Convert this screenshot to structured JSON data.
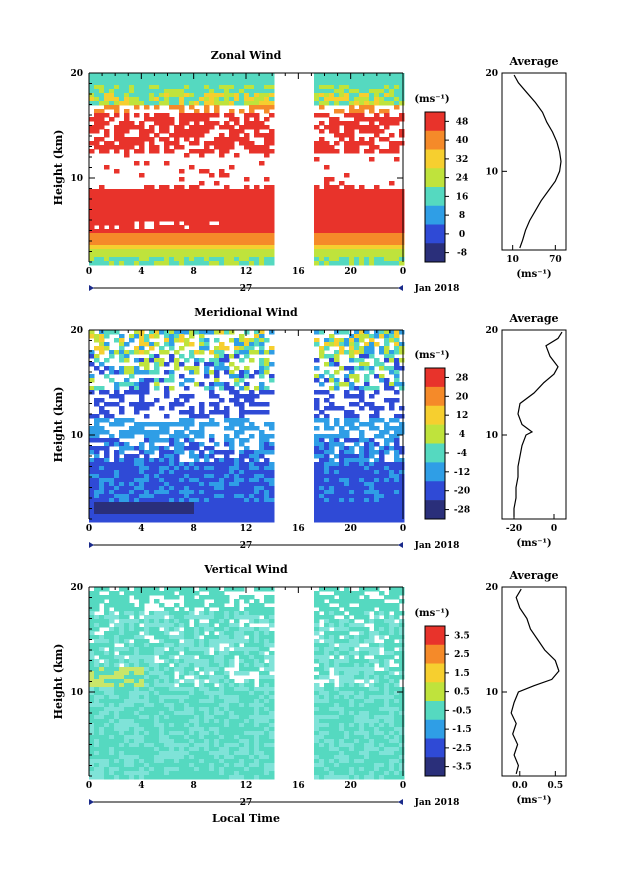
{
  "chart_data": [
    {
      "type": "heatmap",
      "title": "Zonal Wind",
      "xlabel": "",
      "ylabel": "Height (km)",
      "x_ticks": [
        "0",
        "4",
        "8",
        "12",
        "16",
        "20",
        "0"
      ],
      "y_ticks": [
        "20",
        "10"
      ],
      "date_label": "27",
      "month_label": "Jan 2018",
      "colorbar": {
        "unit": "(ms⁻¹)",
        "ticks": [
          "48",
          "40",
          "32",
          "24",
          "16",
          "8",
          "0",
          "-8"
        ]
      },
      "profile": {
        "title": "Average",
        "x_ticks": [
          "10",
          "70"
        ],
        "y_ticks": [
          "20",
          "10"
        ],
        "unit": "(ms⁻¹)",
        "xlim": [
          -5,
          85
        ],
        "ylim": [
          2,
          20
        ],
        "points": [
          [
            20,
            2.2
          ],
          [
            24,
            3
          ],
          [
            28,
            4
          ],
          [
            34,
            5
          ],
          [
            42,
            6
          ],
          [
            50,
            7
          ],
          [
            60,
            8
          ],
          [
            70,
            9
          ],
          [
            76,
            10
          ],
          [
            78,
            11
          ],
          [
            76,
            12
          ],
          [
            72,
            13
          ],
          [
            66,
            14
          ],
          [
            58,
            15
          ],
          [
            52,
            16
          ],
          [
            42,
            17
          ],
          [
            30,
            18
          ],
          [
            18,
            19
          ],
          [
            12,
            19.8
          ]
        ]
      }
    },
    {
      "type": "heatmap",
      "title": "Meridional Wind",
      "xlabel": "",
      "ylabel": "Height (km)",
      "x_ticks": [
        "0",
        "4",
        "8",
        "12",
        "16",
        "20",
        "0"
      ],
      "y_ticks": [
        "20",
        "10"
      ],
      "date_label": "27",
      "month_label": "Jan 2018",
      "colorbar": {
        "unit": "(ms⁻¹)",
        "ticks": [
          "28",
          "20",
          "12",
          "4",
          "-4",
          "-12",
          "-20",
          "-28"
        ]
      },
      "profile": {
        "title": "Average",
        "x_ticks": [
          "-20",
          "0"
        ],
        "y_ticks": [
          "20",
          "10"
        ],
        "unit": "(ms⁻¹)",
        "xlim": [
          -26,
          6
        ],
        "ylim": [
          2,
          20
        ],
        "points": [
          [
            -20,
            2.2
          ],
          [
            -20,
            3
          ],
          [
            -19,
            4
          ],
          [
            -19,
            5
          ],
          [
            -18,
            6
          ],
          [
            -18,
            7
          ],
          [
            -17,
            8
          ],
          [
            -16,
            9
          ],
          [
            -14,
            10
          ],
          [
            -11,
            10.3
          ],
          [
            -16,
            11
          ],
          [
            -18,
            12
          ],
          [
            -17,
            13
          ],
          [
            -10,
            14
          ],
          [
            -5,
            15
          ],
          [
            0,
            15.8
          ],
          [
            2,
            16.5
          ],
          [
            -2,
            17.5
          ],
          [
            -4,
            18.5
          ],
          [
            2,
            19.2
          ],
          [
            4,
            19.8
          ]
        ]
      }
    },
    {
      "type": "heatmap",
      "title": "Vertical Wind",
      "xlabel": "Local Time",
      "ylabel": "Height (km)",
      "x_ticks": [
        "0",
        "4",
        "8",
        "12",
        "16",
        "20",
        "0"
      ],
      "y_ticks": [
        "20",
        "10"
      ],
      "date_label": "27",
      "month_label": "Jan 2018",
      "colorbar": {
        "unit": "(ms⁻¹)",
        "ticks": [
          "3.5",
          "2.5",
          "1.5",
          "0.5",
          "-0.5",
          "-1.5",
          "-2.5",
          "-3.5"
        ]
      },
      "profile": {
        "title": "Average",
        "x_ticks": [
          "0.0",
          "0.5"
        ],
        "y_ticks": [
          "20",
          "10"
        ],
        "unit": "(ms⁻¹)",
        "xlim": [
          -0.25,
          0.65
        ],
        "ylim": [
          2,
          20
        ],
        "points": [
          [
            -0.05,
            2.2
          ],
          [
            -0.02,
            3
          ],
          [
            -0.08,
            4
          ],
          [
            -0.03,
            5
          ],
          [
            -0.1,
            6
          ],
          [
            -0.05,
            7
          ],
          [
            -0.12,
            8
          ],
          [
            -0.08,
            9
          ],
          [
            -0.02,
            10
          ],
          [
            0.2,
            10.6
          ],
          [
            0.45,
            11.2
          ],
          [
            0.55,
            12
          ],
          [
            0.5,
            13
          ],
          [
            0.35,
            14
          ],
          [
            0.25,
            15
          ],
          [
            0.15,
            16
          ],
          [
            0.1,
            17
          ],
          [
            0.0,
            18
          ],
          [
            -0.05,
            19
          ],
          [
            0.02,
            19.8
          ]
        ]
      }
    }
  ]
}
